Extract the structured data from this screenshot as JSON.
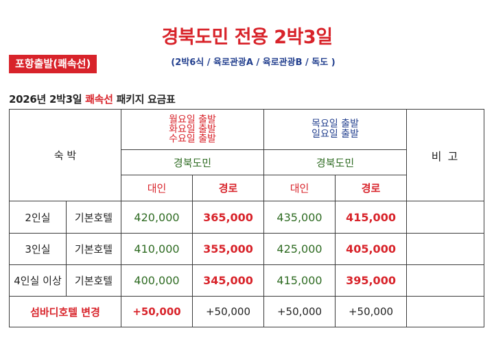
{
  "header": {
    "title": "경북도민 전용 2박3일",
    "subtitle": "(2박6식 / 육로관광A / 육로관광B / 독도 )",
    "badge": "포항출발(쾌속선)"
  },
  "table_title": {
    "prefix": "2026년 2박3일 ",
    "highlight": "쾌속선",
    "suffix": " 패키지 요금표"
  },
  "table": {
    "lodging_header": "숙 박",
    "remarks_header": "비 고",
    "col_group_a": {
      "departure_days": [
        "월요일 출발",
        "화요일 출발",
        "수요일 출발"
      ],
      "resident": "경북도민",
      "adult": "대인",
      "senior": "경로"
    },
    "col_group_b": {
      "departure_days": [
        "목요일 출발",
        "일요일 출발"
      ],
      "resident": "경북도민",
      "adult": "대인",
      "senior": "경로"
    },
    "rows": [
      {
        "room": "2인실",
        "hotel": "기본호텔",
        "a_adult": "420,000",
        "a_senior": "365,000",
        "b_adult": "435,000",
        "b_senior": "415,000",
        "remark": ""
      },
      {
        "room": "3인실",
        "hotel": "기본호텔",
        "a_adult": "410,000",
        "a_senior": "355,000",
        "b_adult": "425,000",
        "b_senior": "405,000",
        "remark": ""
      },
      {
        "room": "4인실 이상",
        "hotel": "기본호텔",
        "a_adult": "400,000",
        "a_senior": "345,000",
        "b_adult": "415,000",
        "b_senior": "395,000",
        "remark": ""
      }
    ],
    "upgrade_row": {
      "label": "섬바디호텔 변경",
      "a_adult": "+50,000",
      "a_senior": "+50,000",
      "b_adult": "+50,000",
      "b_senior": "+50,000",
      "remark": ""
    }
  }
}
